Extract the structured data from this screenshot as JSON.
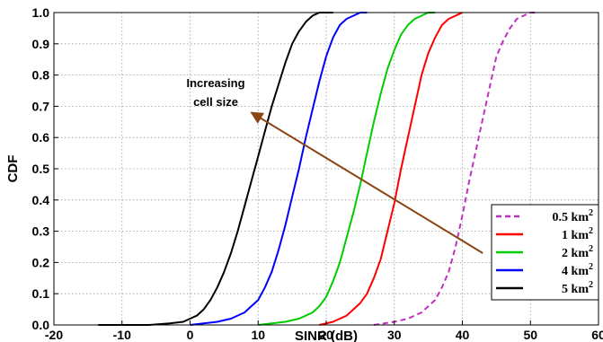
{
  "chart_data": {
    "type": "line",
    "title": "",
    "xlabel": "SINR (dB)",
    "ylabel": "CDF",
    "xlim": [
      -20,
      60
    ],
    "ylim": [
      0,
      1
    ],
    "xticks": [
      "-20",
      "-10",
      "0",
      "10",
      "20",
      "30",
      "40",
      "50",
      "60"
    ],
    "yticks": [
      "0.0",
      "0.1",
      "0.2",
      "0.3",
      "0.4",
      "0.5",
      "0.6",
      "0.7",
      "0.8",
      "0.9",
      "1.0"
    ],
    "grid": true,
    "legend_position": "bottom-right",
    "annotation": {
      "lines": [
        "Increasing",
        "cell size"
      ],
      "arrow_from": [
        43,
        0.23
      ],
      "arrow_to": [
        9,
        0.68
      ],
      "arrow_color": "#8B4513"
    },
    "series": [
      {
        "name": "0.5 km²",
        "legend_base": "0.5 km",
        "legend_sup": "2",
        "color": "#C030C0",
        "dash": true,
        "x": [
          27,
          30,
          32,
          34,
          35,
          36,
          37,
          38,
          39,
          40,
          41,
          42,
          43,
          44,
          45,
          46,
          47,
          48,
          49,
          50,
          51
        ],
        "y": [
          0.0,
          0.01,
          0.02,
          0.04,
          0.06,
          0.08,
          0.12,
          0.17,
          0.25,
          0.35,
          0.46,
          0.56,
          0.66,
          0.76,
          0.86,
          0.91,
          0.95,
          0.98,
          0.99,
          1.0,
          1.0
        ]
      },
      {
        "name": "1 km²",
        "legend_base": "1 km",
        "legend_sup": "2",
        "color": "#FF0000",
        "dash": false,
        "x": [
          19,
          21,
          22,
          23,
          24,
          25,
          26,
          27,
          28,
          29,
          30,
          31,
          32,
          33,
          34,
          35,
          36,
          37,
          38,
          39,
          40
        ],
        "y": [
          0.0,
          0.01,
          0.02,
          0.03,
          0.05,
          0.07,
          0.1,
          0.15,
          0.21,
          0.3,
          0.39,
          0.5,
          0.6,
          0.7,
          0.8,
          0.87,
          0.92,
          0.96,
          0.98,
          0.99,
          1.0
        ]
      },
      {
        "name": "2 km²",
        "legend_base": "2 km",
        "legend_sup": "2",
        "color": "#00CC00",
        "dash": false,
        "x": [
          10,
          14,
          16,
          17,
          18,
          19,
          20,
          21,
          22,
          23,
          24,
          25,
          26,
          27,
          28,
          29,
          30,
          31,
          32,
          33,
          34,
          35,
          36
        ],
        "y": [
          0.0,
          0.01,
          0.02,
          0.03,
          0.04,
          0.06,
          0.09,
          0.14,
          0.2,
          0.28,
          0.36,
          0.45,
          0.55,
          0.65,
          0.74,
          0.82,
          0.88,
          0.93,
          0.96,
          0.98,
          0.99,
          1.0,
          1.0
        ]
      },
      {
        "name": "4 km²",
        "legend_base": "4 km",
        "legend_sup": "2",
        "color": "#0000FF",
        "dash": false,
        "x": [
          0,
          4,
          6,
          8,
          9,
          10,
          11,
          12,
          13,
          14,
          15,
          16,
          17,
          18,
          19,
          20,
          21,
          22,
          23,
          24,
          25,
          26
        ],
        "y": [
          0.0,
          0.01,
          0.02,
          0.04,
          0.06,
          0.08,
          0.12,
          0.17,
          0.24,
          0.32,
          0.41,
          0.5,
          0.6,
          0.69,
          0.78,
          0.86,
          0.92,
          0.96,
          0.98,
          0.99,
          1.0,
          1.0
        ]
      },
      {
        "name": "5 km²",
        "legend_base": "5 km",
        "legend_sup": "2",
        "color": "#000000",
        "dash": false,
        "x": [
          -13.5,
          -6,
          -3,
          -1,
          0,
          1,
          2,
          3,
          4,
          5,
          6,
          7,
          8,
          9,
          10,
          11,
          12,
          13,
          14,
          15,
          16,
          17,
          18,
          19,
          20,
          21
        ],
        "y": [
          0.0,
          0.0,
          0.005,
          0.01,
          0.02,
          0.03,
          0.05,
          0.08,
          0.12,
          0.17,
          0.23,
          0.3,
          0.38,
          0.46,
          0.54,
          0.62,
          0.7,
          0.77,
          0.84,
          0.9,
          0.94,
          0.97,
          0.99,
          1.0,
          1.0,
          1.0
        ]
      }
    ]
  }
}
